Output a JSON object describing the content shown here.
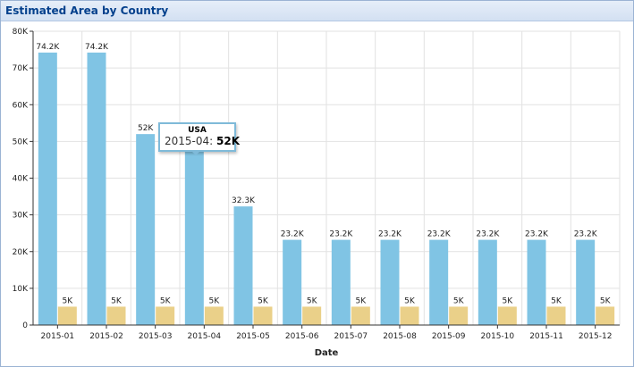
{
  "panel": {
    "title": "Estimated Area by Country"
  },
  "chart_data": {
    "type": "bar",
    "title": "",
    "xlabel": "Date",
    "ylabel": "",
    "ylim": [
      0,
      80000
    ],
    "yticks": [
      "0",
      "10K",
      "20K",
      "30K",
      "40K",
      "50K",
      "60K",
      "70K",
      "80K"
    ],
    "grid": true,
    "categories": [
      "2015-01",
      "2015-02",
      "2015-03",
      "2015-04",
      "2015-05",
      "2015-06",
      "2015-07",
      "2015-08",
      "2015-09",
      "2015-10",
      "2015-11",
      "2015-12"
    ],
    "series": [
      {
        "name": "USA",
        "color": "#80c4e4",
        "values": [
          74200,
          74200,
          52000,
          52000,
          32300,
          23200,
          23200,
          23200,
          23200,
          23200,
          23200,
          23200
        ],
        "labels": [
          "74.2K",
          "74.2K",
          "52K",
          "52K",
          "32.3K",
          "23.2K",
          "23.2K",
          "23.2K",
          "23.2K",
          "23.2K",
          "23.2K",
          "23.2K"
        ]
      },
      {
        "name": "",
        "color": "#ead089",
        "values": [
          5000,
          5000,
          5000,
          5000,
          5000,
          5000,
          5000,
          5000,
          5000,
          5000,
          5000,
          5000
        ],
        "labels": [
          "5K",
          "5K",
          "5K",
          "5K",
          "5K",
          "5K",
          "5K",
          "5K",
          "5K",
          "5K",
          "5K",
          "5K"
        ]
      }
    ]
  },
  "tooltip": {
    "series": "USA",
    "category": "2015-04:",
    "value": "52K"
  }
}
